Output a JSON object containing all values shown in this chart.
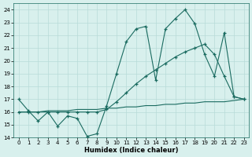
{
  "xlabel": "Humidex (Indice chaleur)",
  "bg_color": "#d8f0ed",
  "line_color": "#1a6b60",
  "grid_color": "#b8dbd8",
  "xlim": [
    -0.5,
    23.5
  ],
  "ylim": [
    14,
    24.5
  ],
  "yticks": [
    14,
    15,
    16,
    17,
    18,
    19,
    20,
    21,
    22,
    23,
    24
  ],
  "xticks": [
    0,
    1,
    2,
    3,
    4,
    5,
    6,
    7,
    8,
    9,
    10,
    11,
    12,
    13,
    14,
    15,
    16,
    17,
    18,
    19,
    20,
    21,
    22,
    23
  ],
  "jagged_x": [
    0,
    1,
    2,
    3,
    4,
    5,
    6,
    7,
    8,
    9,
    10,
    11,
    12,
    13,
    14,
    15,
    16,
    17,
    18,
    19,
    20,
    21,
    22,
    23
  ],
  "jagged_y": [
    17.0,
    16.1,
    15.3,
    16.0,
    14.9,
    15.7,
    15.5,
    14.1,
    14.3,
    16.5,
    19.0,
    21.5,
    22.5,
    22.7,
    18.5,
    22.5,
    23.3,
    24.0,
    22.9,
    20.5,
    18.8,
    22.2,
    17.2,
    17.0
  ],
  "diag_x": [
    0,
    1,
    2,
    3,
    4,
    5,
    6,
    7,
    8,
    9,
    10,
    11,
    12,
    13,
    14,
    15,
    16,
    17,
    18,
    19,
    20,
    21,
    22,
    23
  ],
  "diag_y": [
    16.0,
    16.0,
    16.0,
    16.0,
    16.0,
    16.0,
    16.0,
    16.0,
    16.0,
    16.2,
    16.8,
    17.5,
    18.2,
    18.8,
    19.3,
    19.8,
    20.3,
    20.7,
    21.0,
    21.3,
    20.5,
    18.8,
    17.2,
    17.0
  ],
  "baseline_x": [
    0,
    1,
    2,
    3,
    4,
    5,
    6,
    7,
    8,
    9,
    10,
    11,
    12,
    13,
    14,
    15,
    16,
    17,
    18,
    19,
    20,
    21,
    22,
    23
  ],
  "baseline_y": [
    16.0,
    16.0,
    16.0,
    16.1,
    16.1,
    16.1,
    16.2,
    16.2,
    16.2,
    16.3,
    16.3,
    16.4,
    16.4,
    16.5,
    16.5,
    16.6,
    16.6,
    16.7,
    16.7,
    16.8,
    16.8,
    16.8,
    16.9,
    17.0
  ]
}
